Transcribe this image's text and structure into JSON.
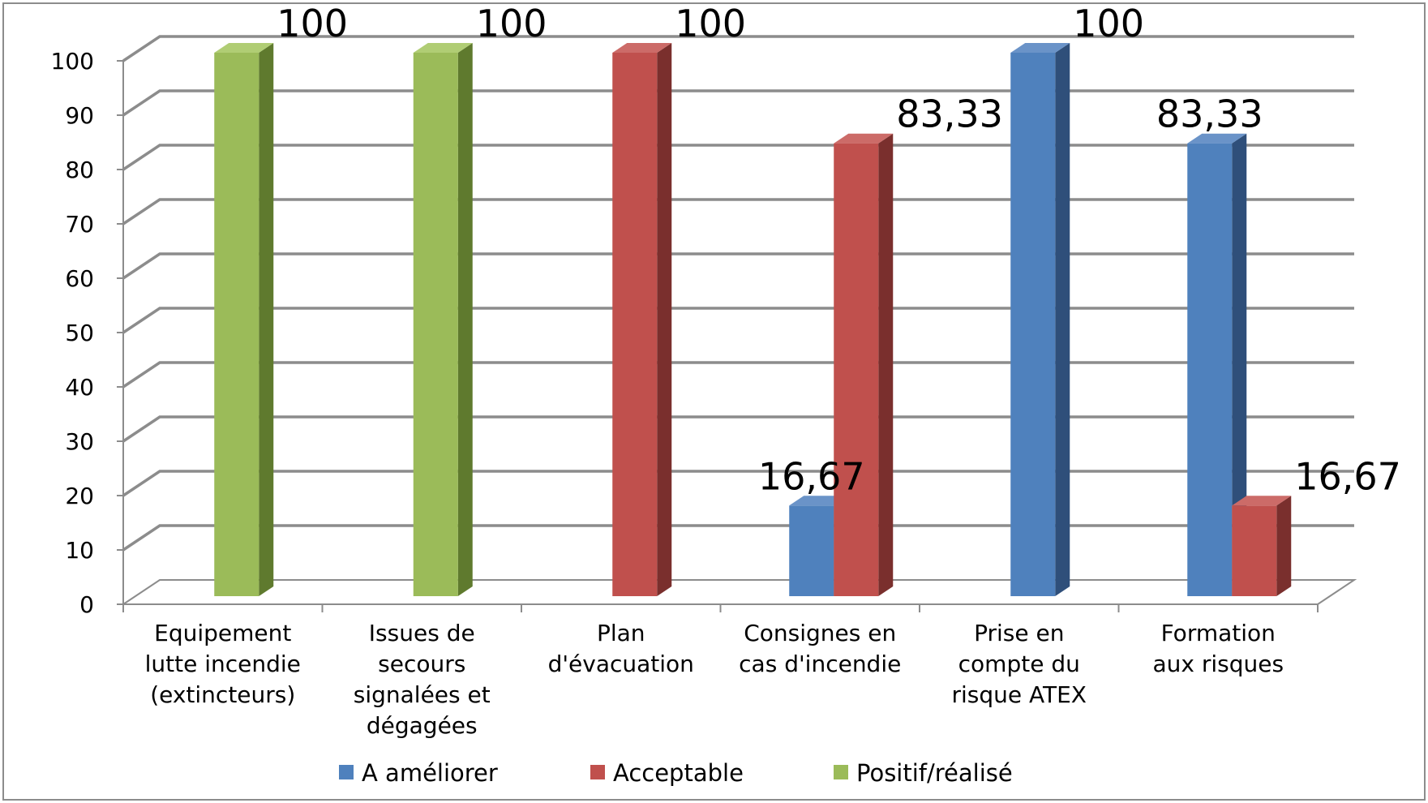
{
  "chart_data": {
    "type": "bar",
    "ylim": [
      0,
      100
    ],
    "yticks": [
      "0",
      "10",
      "20",
      "30",
      "40",
      "50",
      "60",
      "70",
      "80",
      "90",
      "100"
    ],
    "grid": true,
    "legend_position": "bottom",
    "categories": [
      [
        "Equipement",
        "lutte incendie",
        "(extincteurs)"
      ],
      [
        "Issues de",
        "secours",
        "signalées et",
        "dégagées"
      ],
      [
        "Plan",
        "d'évacuation"
      ],
      [
        "Consignes en",
        "cas d'incendie"
      ],
      [
        "Prise en",
        "compte du",
        "risque ATEX"
      ],
      [
        "Formation",
        "aux risques"
      ]
    ],
    "series": [
      {
        "name": "A améliorer",
        "color": "#4f81bd",
        "side_color": "#2f4f7a",
        "top_color": "#6a93c8",
        "values": [
          null,
          null,
          null,
          16.67,
          100,
          83.33
        ]
      },
      {
        "name": "Acceptable",
        "color": "#c0504d",
        "side_color": "#7a2f2d",
        "top_color": "#cc6b68",
        "values": [
          null,
          null,
          100,
          83.33,
          null,
          16.67
        ]
      },
      {
        "name": "Positif/réalisé",
        "color": "#9bbb59",
        "side_color": "#5f7a2e",
        "top_color": "#b0cd74",
        "values": [
          100,
          100,
          null,
          null,
          null,
          null
        ]
      }
    ],
    "data_labels": [
      {
        "category": 0,
        "series": 2,
        "text": "100"
      },
      {
        "category": 1,
        "series": 2,
        "text": "100"
      },
      {
        "category": 2,
        "series": 1,
        "text": "100"
      },
      {
        "category": 3,
        "series": 0,
        "text": "16,67"
      },
      {
        "category": 3,
        "series": 1,
        "text": "83,33"
      },
      {
        "category": 4,
        "series": 0,
        "text": "100"
      },
      {
        "category": 5,
        "series": 0,
        "text": "83,33"
      },
      {
        "category": 5,
        "series": 1,
        "text": "16,67"
      }
    ]
  }
}
